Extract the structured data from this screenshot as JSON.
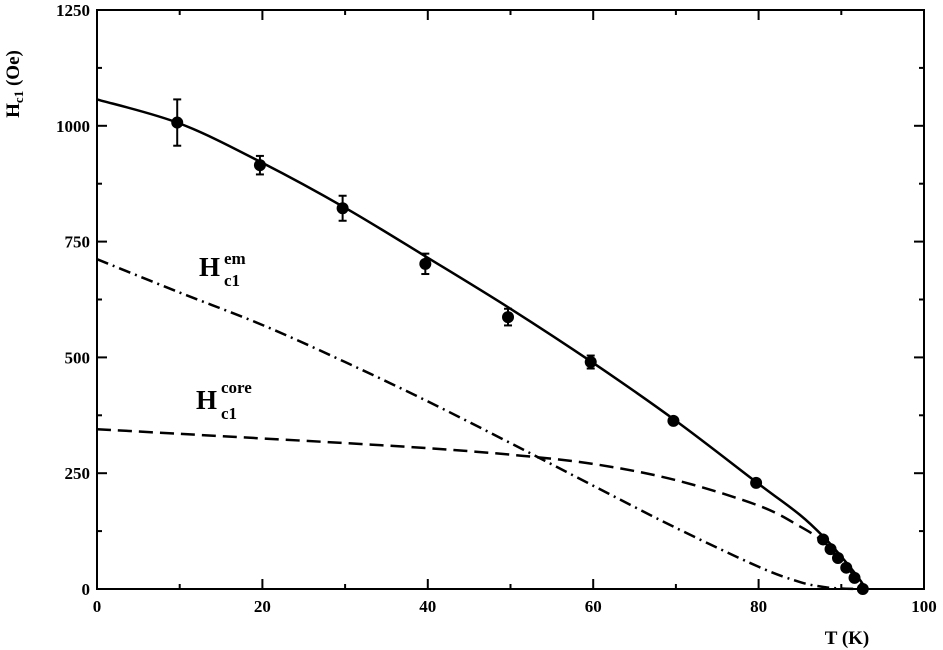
{
  "chart_data": {
    "type": "line",
    "xlabel": "T (K)",
    "ylabel": {
      "main": "H",
      "sub": "c1",
      "rest": " (Oe)"
    },
    "xlim": [
      0,
      100
    ],
    "ylim": [
      0,
      1250
    ],
    "xticks": [
      "0",
      "20",
      "40",
      "60",
      "80",
      "100"
    ],
    "yticks": [
      "0",
      "250",
      "500",
      "750",
      "1000",
      "1250"
    ],
    "grid": false,
    "legend": "none",
    "annotations": [
      {
        "id": "em",
        "main": "H",
        "sup": "em",
        "sub": "c1",
        "anchor": [
          12.5,
          660
        ]
      },
      {
        "id": "core",
        "main": "H",
        "sup": "core",
        "sub": "c1",
        "anchor": [
          12.5,
          395
        ]
      }
    ],
    "series": [
      {
        "style": "points",
        "x": [
          9.7,
          19.7,
          29.7,
          39.7,
          49.7,
          59.7,
          69.7,
          79.7,
          87.8,
          88.7,
          89.6,
          90.6,
          91.6,
          92.6
        ],
        "y": [
          1007,
          915,
          822,
          702,
          587,
          490,
          363,
          229,
          107,
          86,
          67,
          46,
          24,
          0
        ],
        "yerr": [
          50,
          20,
          27,
          22,
          18,
          14,
          0,
          0,
          0,
          0,
          0,
          0,
          0,
          0
        ]
      },
      {
        "style": "solid",
        "x": [
          0,
          10,
          20,
          30,
          40,
          50,
          60,
          70,
          80,
          85,
          88,
          90,
          92,
          93
        ],
        "y": [
          1057,
          1005,
          920,
          823,
          715,
          605,
          488,
          363,
          227,
          160,
          110,
          70,
          26,
          0
        ]
      },
      {
        "style": "dash-dot",
        "x": [
          0,
          10,
          20,
          30,
          40,
          50,
          60,
          70,
          80,
          85,
          88,
          90,
          92
        ],
        "y": [
          712,
          640,
          570,
          490,
          405,
          315,
          223,
          132,
          48,
          15,
          4,
          1,
          0
        ]
      },
      {
        "style": "dashed",
        "x": [
          0,
          10,
          20,
          30,
          40,
          50,
          60,
          70,
          80,
          85,
          88,
          90,
          92,
          93
        ],
        "y": [
          345,
          335,
          325,
          315,
          304,
          290,
          270,
          235,
          180,
          135,
          100,
          60,
          20,
          0
        ]
      }
    ]
  }
}
